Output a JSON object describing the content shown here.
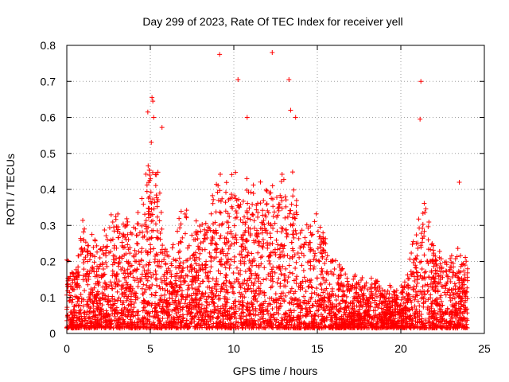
{
  "chart_data": {
    "type": "scatter",
    "title": "Day 299 of 2023, Rate Of TEC Index for receiver yell",
    "xlabel": "GPS time / hours",
    "ylabel": "ROTI / TECUs",
    "xlim": [
      0,
      25
    ],
    "ylim": [
      0,
      0.8
    ],
    "xticks": [
      "0",
      "5",
      "10",
      "15",
      "20",
      "25"
    ],
    "yticks": [
      "0",
      "0.1",
      "0.2",
      "0.3",
      "0.4",
      "0.5",
      "0.6",
      "0.7",
      "0.8"
    ],
    "grid": true,
    "marker": "plus",
    "color": "#ff0000",
    "x_range": [
      0,
      24
    ],
    "envelope": {
      "hours": [
        0,
        0.5,
        1,
        1.5,
        2,
        2.5,
        3,
        3.5,
        4,
        4.5,
        4.8,
        5,
        5.3,
        5.6,
        6,
        6.5,
        7,
        7.5,
        8,
        8.5,
        9,
        9.5,
        10,
        10.5,
        11,
        11.5,
        12,
        12.5,
        13,
        13.5,
        14,
        14.5,
        15,
        15.5,
        16,
        16.5,
        17,
        17.5,
        18,
        18.5,
        19,
        19.5,
        20,
        20.5,
        21,
        21.3,
        21.6,
        22,
        22.5,
        23,
        23.5,
        24
      ],
      "typical_max": [
        0.2,
        0.18,
        0.3,
        0.25,
        0.25,
        0.3,
        0.33,
        0.3,
        0.3,
        0.35,
        0.5,
        0.55,
        0.5,
        0.38,
        0.2,
        0.25,
        0.35,
        0.3,
        0.3,
        0.33,
        0.4,
        0.4,
        0.45,
        0.4,
        0.4,
        0.38,
        0.4,
        0.4,
        0.42,
        0.45,
        0.3,
        0.3,
        0.33,
        0.25,
        0.2,
        0.17,
        0.15,
        0.15,
        0.14,
        0.15,
        0.12,
        0.12,
        0.12,
        0.2,
        0.3,
        0.38,
        0.3,
        0.25,
        0.2,
        0.2,
        0.22,
        0.2
      ]
    },
    "outliers": [
      {
        "x": 4.85,
        "y": 0.615
      },
      {
        "x": 5.1,
        "y": 0.655
      },
      {
        "x": 5.15,
        "y": 0.645
      },
      {
        "x": 5.2,
        "y": 0.6
      },
      {
        "x": 5.7,
        "y": 0.572
      },
      {
        "x": 9.15,
        "y": 0.775
      },
      {
        "x": 10.25,
        "y": 0.705
      },
      {
        "x": 10.8,
        "y": 0.6
      },
      {
        "x": 12.3,
        "y": 0.78
      },
      {
        "x": 13.3,
        "y": 0.705
      },
      {
        "x": 13.4,
        "y": 0.62
      },
      {
        "x": 13.7,
        "y": 0.6
      },
      {
        "x": 21.2,
        "y": 0.7
      },
      {
        "x": 21.15,
        "y": 0.595
      },
      {
        "x": 23.5,
        "y": 0.42
      }
    ]
  }
}
